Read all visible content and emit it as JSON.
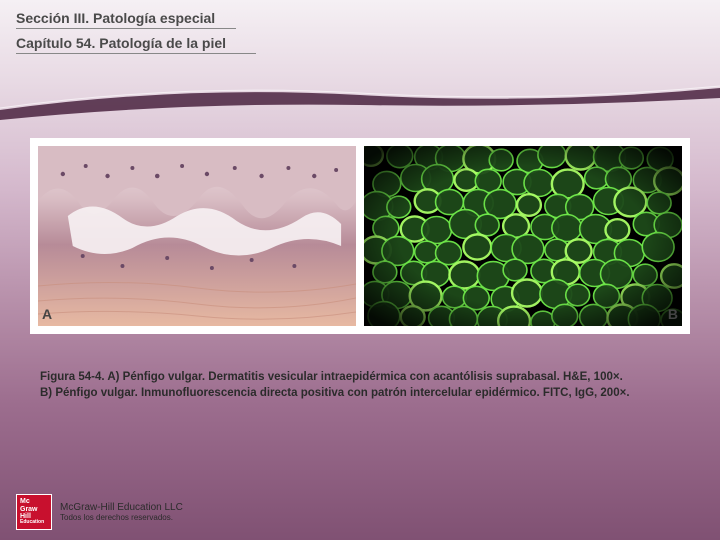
{
  "header": {
    "section": "Sección III. Patología especial",
    "chapter": "Capítulo 54. Patología de la piel"
  },
  "figure": {
    "panel_a_label": "A",
    "panel_b_label": "B",
    "caption_line1": "Figura 54-4. A) Pénfigo vulgar. Dermatitis vesicular intraepidérmica con acantólisis suprabasal. H&E, 100×.",
    "caption_line2": "B) Pénfigo vulgar. Inmunofluorescencia directa positiva con patrón intercelular epidérmico. FITC, IgG, 200×."
  },
  "footer": {
    "logo_line1": "Mc",
    "logo_line2": "Graw",
    "logo_line3": "Hill",
    "logo_line4": "Education",
    "publisher": "McGraw-Hill Education LLC",
    "rights": "Todos los derechos reservados."
  },
  "style": {
    "panel_a": {
      "bg_stops": [
        "#efe0e4",
        "#d8bcc3",
        "#b78b98",
        "#a36f82"
      ],
      "lesion_color": "#f6f0f2",
      "dermis_color": "#e7b9a2",
      "nuclei_color": "#6b4a66"
    },
    "panel_b": {
      "bg": "#000000",
      "cell_fill": "#1e4a1a",
      "cell_stroke": "#6fe84a",
      "bright": "#aaff66"
    }
  }
}
